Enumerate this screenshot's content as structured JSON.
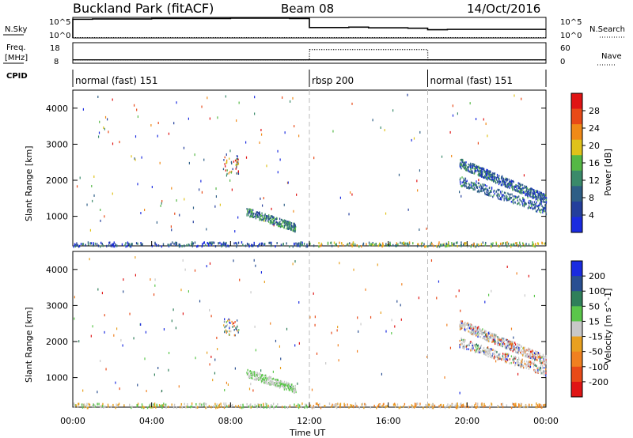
{
  "header": {
    "station": "Buckland Park (fitACF)",
    "beam": "Beam 08",
    "date": "14/Oct/2016"
  },
  "sidebar_labels": {
    "nsky": "N.Sky",
    "freq_top": "Freq.",
    "freq_unit": "[MHz]",
    "cpid": "CPID",
    "nsearch": "N.Search",
    "nave": "Nave"
  },
  "top_axes": {
    "noise_ticks": [
      "10^5",
      "10^0"
    ],
    "freq_ticks": [
      "18",
      "8"
    ],
    "nave_ticks": [
      "60",
      "0"
    ]
  },
  "cpid_segments": [
    {
      "label": "normal (fast) 151",
      "start_hour": 0,
      "end_hour": 12
    },
    {
      "label": "rbsp 200",
      "start_hour": 12,
      "end_hour": 18
    },
    {
      "label": "normal (fast) 151",
      "start_hour": 18,
      "end_hour": 24
    }
  ],
  "x_axis": {
    "label": "Time UT",
    "ticks": [
      "00:00",
      "04:00",
      "08:00",
      "12:00",
      "16:00",
      "20:00",
      "00:00"
    ]
  },
  "y_axis": {
    "label": "Slant Range [km]",
    "ticks": [
      "1000",
      "2000",
      "3000",
      "4000"
    ]
  },
  "colorbar_power": {
    "label": "Power [dB]",
    "ticks": [
      "4",
      "8",
      "12",
      "16",
      "20",
      "24",
      "28"
    ],
    "colors": [
      "#1a2be0",
      "#243f9c",
      "#2e5e86",
      "#3a8a6a",
      "#55b845",
      "#e0c21a",
      "#f08a18",
      "#e84a18",
      "#e01414"
    ]
  },
  "colorbar_velocity": {
    "label": "Velocity [m s^-1]",
    "ticks": [
      "200",
      "100",
      "50",
      "15",
      "-15",
      "-50",
      "-100",
      "-200"
    ],
    "colors": [
      "#1a2be0",
      "#2a4f92",
      "#2f7f5a",
      "#5ac64a",
      "#c8c8c8",
      "#e8a020",
      "#f08020",
      "#e84a18",
      "#e01414"
    ]
  },
  "chart_data": [
    {
      "type": "line",
      "title": "N.Sky / N.Search",
      "x": [
        0,
        1,
        2,
        3,
        4,
        5,
        6,
        7,
        8,
        9,
        10,
        11,
        12,
        13,
        14,
        15,
        16,
        17,
        18,
        19,
        20,
        21,
        22,
        23,
        24
      ],
      "series": [
        {
          "name": "N.Sky",
          "values": [
            5.0,
            5.1,
            5.1,
            5.1,
            5.2,
            5.2,
            5.2,
            5.2,
            5.3,
            5.3,
            5.3,
            5.2,
            2.8,
            2.8,
            2.9,
            2.7,
            2.7,
            2.6,
            2.2,
            2.3,
            2.3,
            2.3,
            2.3,
            2.3,
            2.3
          ]
        },
        {
          "name": "N.Search",
          "values": [
            0.1,
            0.1,
            0.1,
            0.1,
            0.1,
            0.1,
            0.1,
            0.1,
            0.1,
            0.1,
            0.1,
            0.1,
            0.1,
            0.1,
            0.1,
            0.1,
            0.1,
            0.1,
            0.1,
            0.1,
            0.1,
            0.1,
            0.1,
            0.1,
            0.1
          ]
        }
      ],
      "ylim": [
        0,
        5.5
      ]
    },
    {
      "type": "line",
      "title": "Freq. / Nave",
      "x": [
        0,
        12,
        12.01,
        18,
        18.01,
        24
      ],
      "series": [
        {
          "name": "Freq.",
          "values": [
            10,
            10,
            10,
            10,
            10,
            10
          ]
        },
        {
          "name": "Nave",
          "values": [
            10,
            10,
            40,
            40,
            10,
            10
          ]
        }
      ],
      "ylim": [
        0,
        60
      ]
    },
    {
      "type": "heatmap",
      "title": "Power [dB]",
      "xlim": [
        0,
        24
      ],
      "ylim": [
        180,
        4500
      ],
      "clim": [
        0,
        30
      ],
      "features": [
        {
          "name": "ground scatter near range",
          "hours": [
            0,
            24
          ],
          "range_km": [
            180,
            300
          ],
          "value_db": 8
        },
        {
          "name": "evening echo band",
          "hours": [
            8.8,
            11.3
          ],
          "range_km": [
            650,
            1200
          ],
          "value_db": 7
        },
        {
          "name": "sporadic patch",
          "hours": [
            7.6,
            8.4
          ],
          "range_km": [
            2200,
            2700
          ],
          "value_db": 14
        },
        {
          "name": "descending scatter band",
          "hours": [
            19.6,
            24
          ],
          "range_km": [
            1300,
            2700
          ],
          "value_db": 10
        }
      ]
    },
    {
      "type": "heatmap",
      "title": "Velocity [m s^-1]",
      "xlim": [
        0,
        24
      ],
      "ylim": [
        180,
        4500
      ],
      "clim": [
        -250,
        250
      ],
      "features": [
        {
          "name": "ground scatter near range",
          "hours": [
            0,
            24
          ],
          "range_km": [
            180,
            300
          ],
          "value_ms": -40
        },
        {
          "name": "evening echo band",
          "hours": [
            8.8,
            11.3
          ],
          "range_km": [
            650,
            1200
          ],
          "value_ms": 0
        },
        {
          "name": "descending scatter band",
          "hours": [
            19.6,
            24
          ],
          "range_km": [
            1300,
            2700
          ],
          "value_ms": 0
        }
      ]
    }
  ]
}
